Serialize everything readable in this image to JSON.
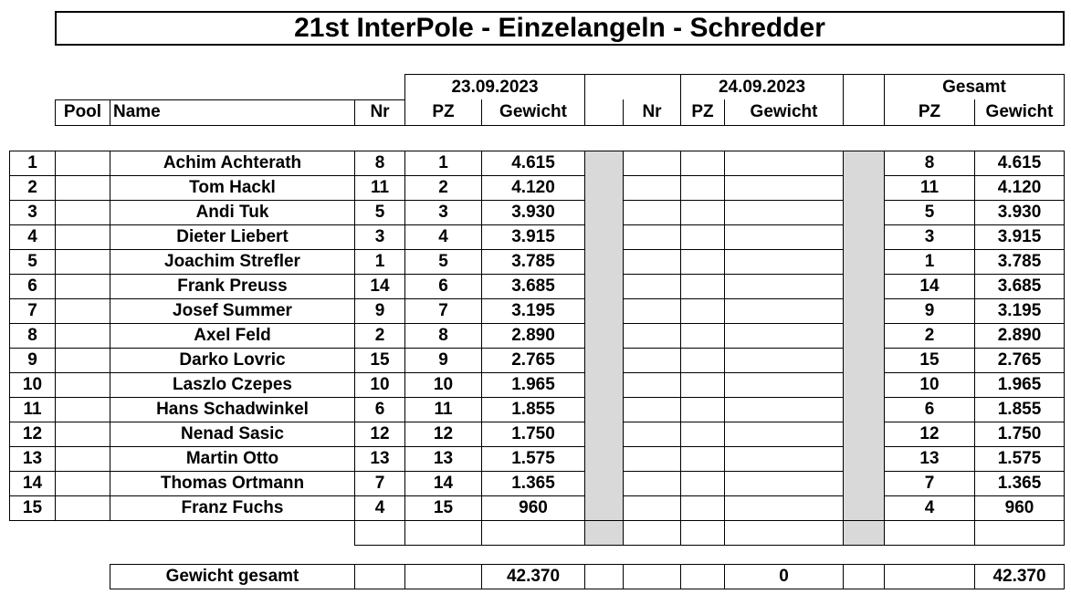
{
  "title": "21st InterPole - Einzelangeln - Schredder",
  "header": {
    "day1_date": "23.09.2023",
    "day2_date": "24.09.2023",
    "total_label": "Gesamt",
    "pool": "Pool",
    "name": "Name",
    "nr": "Nr",
    "pz": "PZ",
    "gewicht": "Gewicht"
  },
  "rows": [
    {
      "rank": "1",
      "name": "Achim Achterath",
      "nr": "8",
      "pz": "1",
      "gewicht": "4.615",
      "total_pz": "8",
      "total_gewicht": "4.615"
    },
    {
      "rank": "2",
      "name": "Tom Hackl",
      "nr": "11",
      "pz": "2",
      "gewicht": "4.120",
      "total_pz": "11",
      "total_gewicht": "4.120"
    },
    {
      "rank": "3",
      "name": "Andi Tuk",
      "nr": "5",
      "pz": "3",
      "gewicht": "3.930",
      "total_pz": "5",
      "total_gewicht": "3.930"
    },
    {
      "rank": "4",
      "name": "Dieter Liebert",
      "nr": "3",
      "pz": "4",
      "gewicht": "3.915",
      "total_pz": "3",
      "total_gewicht": "3.915"
    },
    {
      "rank": "5",
      "name": "Joachim Strefler",
      "nr": "1",
      "pz": "5",
      "gewicht": "3.785",
      "total_pz": "1",
      "total_gewicht": "3.785"
    },
    {
      "rank": "6",
      "name": "Frank Preuss",
      "nr": "14",
      "pz": "6",
      "gewicht": "3.685",
      "total_pz": "14",
      "total_gewicht": "3.685"
    },
    {
      "rank": "7",
      "name": "Josef Summer",
      "nr": "9",
      "pz": "7",
      "gewicht": "3.195",
      "total_pz": "9",
      "total_gewicht": "3.195"
    },
    {
      "rank": "8",
      "name": "Axel Feld",
      "nr": "2",
      "pz": "8",
      "gewicht": "2.890",
      "total_pz": "2",
      "total_gewicht": "2.890"
    },
    {
      "rank": "9",
      "name": "Darko Lovric",
      "nr": "15",
      "pz": "9",
      "gewicht": "2.765",
      "total_pz": "15",
      "total_gewicht": "2.765"
    },
    {
      "rank": "10",
      "name": "Laszlo Czepes",
      "nr": "10",
      "pz": "10",
      "gewicht": "1.965",
      "total_pz": "10",
      "total_gewicht": "1.965"
    },
    {
      "rank": "11",
      "name": "Hans Schadwinkel",
      "nr": "6",
      "pz": "11",
      "gewicht": "1.855",
      "total_pz": "6",
      "total_gewicht": "1.855"
    },
    {
      "rank": "12",
      "name": "Nenad Sasic",
      "nr": "12",
      "pz": "12",
      "gewicht": "1.750",
      "total_pz": "12",
      "total_gewicht": "1.750"
    },
    {
      "rank": "13",
      "name": "Martin Otto",
      "nr": "13",
      "pz": "13",
      "gewicht": "1.575",
      "total_pz": "13",
      "total_gewicht": "1.575"
    },
    {
      "rank": "14",
      "name": "Thomas Ortmann",
      "nr": "7",
      "pz": "14",
      "gewicht": "1.365",
      "total_pz": "7",
      "total_gewicht": "1.365"
    },
    {
      "rank": "15",
      "name": "Franz Fuchs",
      "nr": "4",
      "pz": "15",
      "gewicht": "960",
      "total_pz": "4",
      "total_gewicht": "960"
    }
  ],
  "footer": {
    "label": "Gewicht gesamt",
    "day1_total": "42.370",
    "day2_total": "0",
    "grand_total": "42.370"
  },
  "colors": {
    "separator_grey": "#d9d9d9",
    "border": "#000000"
  }
}
